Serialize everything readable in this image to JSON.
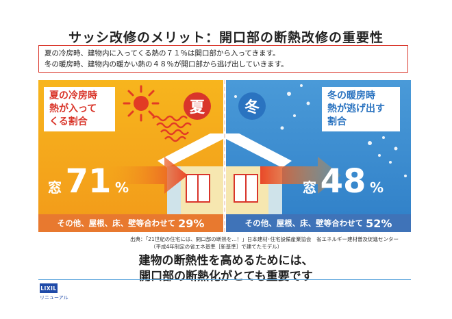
{
  "title": "サッシ改修のメリット：開口部の断熱改修の重要性",
  "summary": {
    "line1": "夏の冷房時、建物内に入ってくる熱の７１％は開口部から入ってきます。",
    "line2": "冬の暖房時、建物内の暖かい熱の４８％が開口部から逃げ出していきます。"
  },
  "summer": {
    "label_line1": "夏の冷房時",
    "label_line2": "熱が入って",
    "label_line3": "くる割合",
    "badge": "夏",
    "window_label": "窓",
    "percent": "71",
    "unit": "%",
    "bar_text": "その他、屋根、床、壁等合わせて",
    "bar_value": "29%"
  },
  "winter": {
    "label_line1": "冬の暖房時",
    "label_line2": "熱が逃げ出す",
    "label_line3": "割合",
    "badge": "冬",
    "window_label": "窓",
    "percent": "48",
    "unit": "%",
    "bar_text": "その他、屋根、床、壁等合わせて",
    "bar_value": "52%"
  },
  "source": {
    "line1": "出典：「21世紀の住宅には、開口部の断熱を…！」日本建材･住宅設備産業協会　省エネルギー建材普及促進センター",
    "line2": "（平成4年制定の省エネ基準［新基準］で建てたモデル）"
  },
  "conclusion": {
    "line1": "建物の断熱性を高めるためには、",
    "line2": "開口部の断熱化がとても重要です"
  },
  "footer": {
    "logo": "LIXIL",
    "subtitle": "リニューアル"
  },
  "colors": {
    "summer_bg": "#f5a81c",
    "winter_bg": "#3a8ad0",
    "summer_bar": "#e8792f",
    "winter_bar": "#3f73b8",
    "summer_badge": "#d9352a",
    "winter_badge": "#2a73c0",
    "accent_red": "#d9352a"
  }
}
